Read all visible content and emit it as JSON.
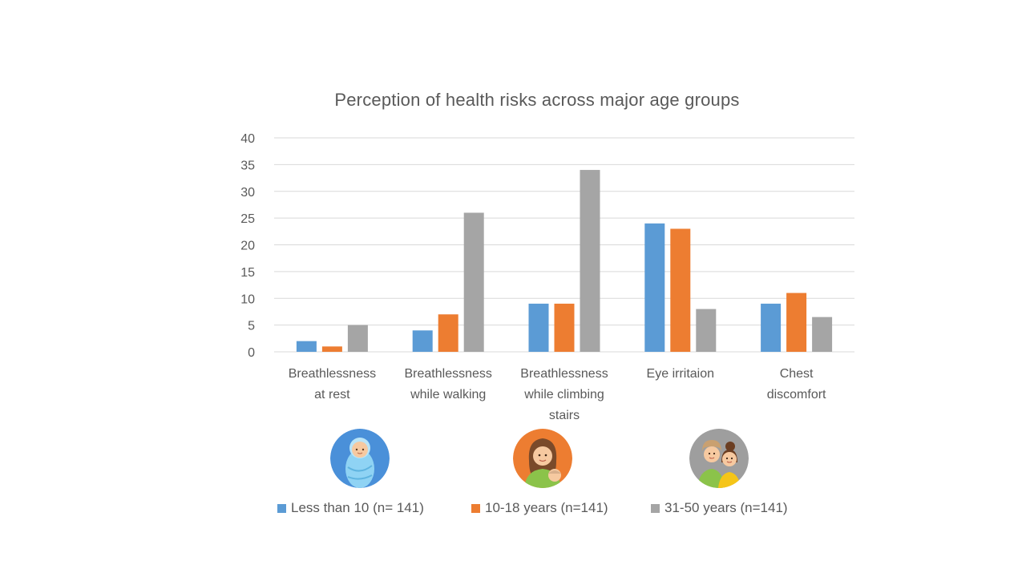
{
  "colors": {
    "series_0": "#5B9BD5",
    "series_1": "#ED7D31",
    "series_2": "#A5A5A5",
    "grid": "#D9D9D9",
    "text": "#595959"
  },
  "icons": [
    "baby-icon",
    "mother-child-icon",
    "couple-icon"
  ],
  "chart_data": {
    "type": "bar",
    "title": "Perception of health risks across major age groups",
    "xlabel": "",
    "ylabel": "",
    "ylim": [
      0,
      40
    ],
    "yticks": [
      0,
      5,
      10,
      15,
      20,
      25,
      30,
      35,
      40
    ],
    "grid": true,
    "legend_position": "bottom",
    "categories": [
      [
        "Breathlessness",
        "at rest"
      ],
      [
        "Breathlessness",
        "while walking"
      ],
      [
        "Breathlessness",
        "while climbing",
        "stairs"
      ],
      [
        "Eye irritaion"
      ],
      [
        "Chest",
        "discomfort"
      ]
    ],
    "series": [
      {
        "name": "Less than 10 (n= 141)",
        "values": [
          2,
          4,
          9,
          24,
          9
        ]
      },
      {
        "name": "10-18 years (n=141)",
        "values": [
          1,
          7,
          9,
          23,
          11
        ]
      },
      {
        "name": "31-50 years (n=141)",
        "values": [
          5,
          26,
          34,
          8,
          6.5
        ]
      }
    ]
  }
}
